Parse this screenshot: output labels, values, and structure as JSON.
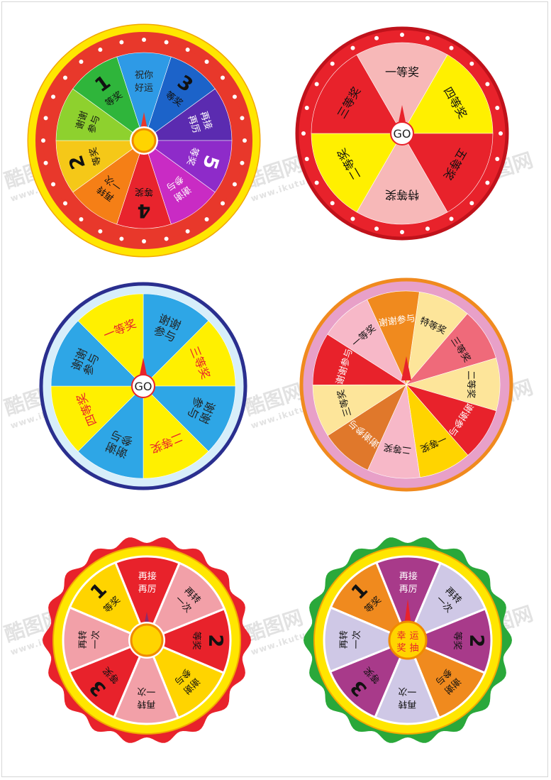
{
  "watermark": {
    "brand": "酷图网",
    "url": "www.ikutu.com"
  },
  "wheels": [
    {
      "id": "wheel-1",
      "ring_color": "#ffe600",
      "ring_stroke": "#f2a800",
      "band_color": "#e8382b",
      "dot_color": "#ffffff",
      "hub": {
        "type": "circle",
        "fill": "#ffd400",
        "stroke": "#f08a00",
        "label": ""
      },
      "pointer_color": "#e8382b",
      "segments": [
        {
          "color": "#2e9ae6",
          "lines": [
            "祝你",
            "好运"
          ],
          "text_color": "#222222"
        },
        {
          "color": "#1c63c9",
          "lines": [
            "3",
            "等奖"
          ],
          "text_color": "#111111"
        },
        {
          "color": "#5b2bb0",
          "lines": [
            "再接",
            "再厉"
          ],
          "text_color": "#ffffff"
        },
        {
          "color": "#8e2bc9",
          "lines": [
            "5",
            "等奖"
          ],
          "text_color": "#ffffff"
        },
        {
          "color": "#c92bc4",
          "lines": [
            "谢谢",
            "参与"
          ],
          "text_color": "#ffffff"
        },
        {
          "color": "#e8242d",
          "lines": [
            "4",
            "等奖"
          ],
          "text_color": "#111111"
        },
        {
          "color": "#f57f16",
          "lines": [
            "再转",
            "一次"
          ],
          "text_color": "#111111"
        },
        {
          "color": "#f5c818",
          "lines": [
            "2",
            "等奖"
          ],
          "text_color": "#111111"
        },
        {
          "color": "#8ed12e",
          "lines": [
            "谢谢",
            "参与"
          ],
          "text_color": "#111111"
        },
        {
          "color": "#2fb53b",
          "lines": [
            "1",
            "等奖"
          ],
          "text_color": "#111111"
        }
      ]
    },
    {
      "id": "wheel-2",
      "ring_color": "#e8222b",
      "ring_stroke": "#c0121b",
      "band_color": "#e8222b",
      "dot_color": "#ffffff",
      "hub": {
        "type": "go",
        "fill": "#ffffff",
        "stroke": "#e8222b",
        "label": "GO"
      },
      "pointer_color": "#e8222b",
      "segments": [
        {
          "color": "#f7b8b8",
          "lines": [
            "一等奖"
          ],
          "text_color": "#111111"
        },
        {
          "color": "#fff000",
          "lines": [
            "四等奖"
          ],
          "text_color": "#111111"
        },
        {
          "color": "#e8222b",
          "lines": [
            "五等奖"
          ],
          "text_color": "#111111"
        },
        {
          "color": "#f7b8b8",
          "lines": [
            "特等奖"
          ],
          "text_color": "#111111"
        },
        {
          "color": "#fff000",
          "lines": [
            "二等奖"
          ],
          "text_color": "#111111"
        },
        {
          "color": "#e8222b",
          "lines": [
            "三等奖"
          ],
          "text_color": "#111111"
        }
      ]
    },
    {
      "id": "wheel-3",
      "ring_color": "#d7eefa",
      "ring_stroke": "#2a2f8f",
      "band_color": "#d7eefa",
      "dot_color": "",
      "hub": {
        "type": "go",
        "fill": "#ffffff",
        "stroke": "#e8222b",
        "label": "GO"
      },
      "pointer_color": "#e8222b",
      "segments": [
        {
          "color": "#2ea6e6",
          "lines": [
            "谢谢",
            "参与"
          ],
          "text_color": "#222222"
        },
        {
          "color": "#fff000",
          "lines": [
            "三等奖"
          ],
          "text_color": "#e8222b"
        },
        {
          "color": "#2ea6e6",
          "lines": [
            "谢谢",
            "参与"
          ],
          "text_color": "#222222"
        },
        {
          "color": "#fff000",
          "lines": [
            "二等奖"
          ],
          "text_color": "#e8222b"
        },
        {
          "color": "#2ea6e6",
          "lines": [
            "谢谢",
            "参与"
          ],
          "text_color": "#222222"
        },
        {
          "color": "#fff000",
          "lines": [
            "四等奖"
          ],
          "text_color": "#e8222b"
        },
        {
          "color": "#2ea6e6",
          "lines": [
            "谢谢",
            "参与"
          ],
          "text_color": "#222222"
        },
        {
          "color": "#fff000",
          "lines": [
            "一等奖"
          ],
          "text_color": "#e8222b"
        }
      ]
    },
    {
      "id": "wheel-4",
      "ring_color": "#e8a0c8",
      "ring_stroke": "#f08a1e",
      "band_color": "#e8a0c8",
      "dot_color": "",
      "hub": {
        "type": "none",
        "fill": "",
        "stroke": "",
        "label": ""
      },
      "pointer_color": "#e8222b",
      "segments": [
        {
          "color": "#fde59a",
          "lines": [
            "特等奖"
          ],
          "text_color": "#111111"
        },
        {
          "color": "#ef6a7a",
          "lines": [
            "三等奖"
          ],
          "text_color": "#111111"
        },
        {
          "color": "#fde59a",
          "lines": [
            "二等奖"
          ],
          "text_color": "#111111"
        },
        {
          "color": "#e8222b",
          "lines": [
            "谢谢参与"
          ],
          "text_color": "#ffffff"
        },
        {
          "color": "#ffd400",
          "lines": [
            "一等奖"
          ],
          "text_color": "#111111"
        },
        {
          "color": "#f7b8c8",
          "lines": [
            "二等奖"
          ],
          "text_color": "#111111"
        },
        {
          "color": "#e0782b",
          "lines": [
            "谢谢参与"
          ],
          "text_color": "#ffffff"
        },
        {
          "color": "#fde59a",
          "lines": [
            "三等奖"
          ],
          "text_color": "#111111"
        },
        {
          "color": "#e8222b",
          "lines": [
            "谢谢参与"
          ],
          "text_color": "#ffffff"
        },
        {
          "color": "#f7b8c8",
          "lines": [
            "一等奖"
          ],
          "text_color": "#111111"
        },
        {
          "color": "#f08a1e",
          "lines": [
            "谢谢参与"
          ],
          "text_color": "#ffffff"
        }
      ]
    },
    {
      "id": "wheel-5",
      "ring_color": "#ffe600",
      "ring_stroke": "#f2a800",
      "band_color": "#e8222b",
      "dot_color": "",
      "hub": {
        "type": "circle",
        "fill": "#ffd400",
        "stroke": "#f08a00",
        "label": ""
      },
      "pointer_color": "#8e2b6a",
      "segments": [
        {
          "color": "#e8222b",
          "lines": [
            "再接",
            "再厉"
          ],
          "text_color": "#ffffff"
        },
        {
          "color": "#f2a0a8",
          "lines": [
            "再转",
            "一次"
          ],
          "text_color": "#111111"
        },
        {
          "color": "#e8222b",
          "lines": [
            "2",
            "等奖"
          ],
          "text_color": "#111111"
        },
        {
          "color": "#ffd400",
          "lines": [
            "谢谢",
            "参与"
          ],
          "text_color": "#111111"
        },
        {
          "color": "#f2a0a8",
          "lines": [
            "再转",
            "一次"
          ],
          "text_color": "#111111"
        },
        {
          "color": "#e8222b",
          "lines": [
            "3",
            "等奖"
          ],
          "text_color": "#111111"
        },
        {
          "color": "#f2a0a8",
          "lines": [
            "再转",
            "一次"
          ],
          "text_color": "#111111"
        },
        {
          "color": "#ffd400",
          "lines": [
            "1",
            "等奖"
          ],
          "text_color": "#111111"
        }
      ]
    },
    {
      "id": "wheel-6",
      "ring_color": "#ffe600",
      "ring_stroke": "#f2a800",
      "band_color": "#2aa83a",
      "dot_color": "",
      "hub": {
        "type": "luck",
        "fill": "#ffd400",
        "stroke": "#f08a00",
        "label": "幸运抽奖"
      },
      "pointer_color": "#e8222b",
      "segments": [
        {
          "color": "#a83a8a",
          "lines": [
            "再接",
            "再厉"
          ],
          "text_color": "#ffffff"
        },
        {
          "color": "#cfc8e6",
          "lines": [
            "再转",
            "一次"
          ],
          "text_color": "#111111"
        },
        {
          "color": "#a83a8a",
          "lines": [
            "2",
            "等奖"
          ],
          "text_color": "#111111"
        },
        {
          "color": "#f08a1e",
          "lines": [
            "谢谢",
            "参与"
          ],
          "text_color": "#111111"
        },
        {
          "color": "#cfc8e6",
          "lines": [
            "再转",
            "一次"
          ],
          "text_color": "#111111"
        },
        {
          "color": "#a83a8a",
          "lines": [
            "3",
            "等奖"
          ],
          "text_color": "#111111"
        },
        {
          "color": "#cfc8e6",
          "lines": [
            "再转",
            "一次"
          ],
          "text_color": "#111111"
        },
        {
          "color": "#f08a1e",
          "lines": [
            "1",
            "等奖"
          ],
          "text_color": "#111111"
        }
      ]
    }
  ]
}
